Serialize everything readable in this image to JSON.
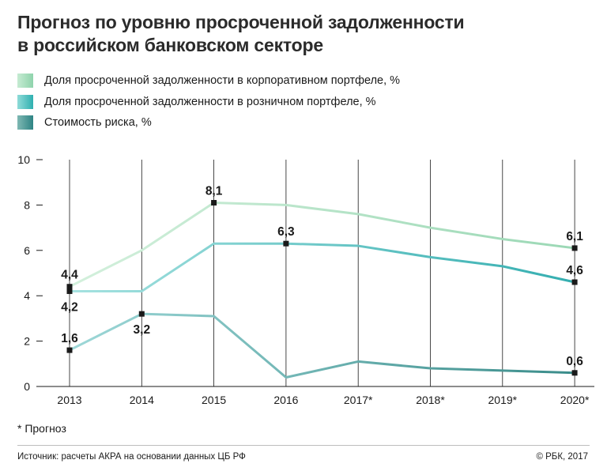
{
  "header": {
    "title_line1": "Прогноз по уровню просроченной задолженности",
    "title_line2": "в российском банковском секторе"
  },
  "legend": [
    {
      "label": "Доля просроченной задолженности в корпоративном портфеле, %",
      "color_from": "#c6ebd2",
      "color_to": "#8fd3ac"
    },
    {
      "label": "Доля просроченной задолженности в розничном портфеле, %",
      "color_from": "#8fdbd8",
      "color_to": "#2fb0b0"
    },
    {
      "label": "Стоимость риска, %",
      "color_from": "#7fb8b3",
      "color_to": "#2e8484"
    }
  ],
  "chart_data": {
    "type": "line",
    "x": [
      "2013",
      "2014",
      "2015",
      "2016",
      "2017*",
      "2018*",
      "2019*",
      "2020*"
    ],
    "ylim": [
      0,
      10
    ],
    "yticks": [
      "0",
      "2",
      "4",
      "6",
      "8",
      "10"
    ],
    "grid": "vertical",
    "series": [
      {
        "name": "Доля просроченной задолженности в корпоративном портфеле, %",
        "values": [
          4.4,
          6.0,
          8.1,
          8.0,
          7.6,
          7.0,
          6.5,
          6.1
        ],
        "color_from": "#d3f0dc",
        "color_to": "#9bd8b5"
      },
      {
        "name": "Доля просроченной задолженности в розничном портфеле, %",
        "values": [
          4.2,
          4.2,
          6.3,
          6.3,
          6.2,
          5.7,
          5.3,
          4.6
        ],
        "color_from": "#a6e2e0",
        "color_to": "#34aeb0"
      },
      {
        "name": "Стоимость риска, %",
        "values": [
          1.6,
          3.2,
          3.1,
          0.4,
          1.1,
          0.8,
          0.7,
          0.6
        ],
        "color_from": "#9ed8d8",
        "color_to": "#3a8c8a"
      }
    ],
    "markers": [
      {
        "series": 0,
        "index": 0,
        "label": "4,4",
        "pos": "above"
      },
      {
        "series": 1,
        "index": 0,
        "label": "4,2",
        "pos": "below"
      },
      {
        "series": 2,
        "index": 0,
        "label": "1,6",
        "pos": "above"
      },
      {
        "series": 2,
        "index": 1,
        "label": "3,2",
        "pos": "below"
      },
      {
        "series": 0,
        "index": 2,
        "label": "8,1",
        "pos": "above"
      },
      {
        "series": 1,
        "index": 3,
        "label": "6,3",
        "pos": "above"
      },
      {
        "series": 0,
        "index": 7,
        "label": "6,1",
        "pos": "above"
      },
      {
        "series": 1,
        "index": 7,
        "label": "4,6",
        "pos": "above"
      },
      {
        "series": 2,
        "index": 7,
        "label": "0,6",
        "pos": "above"
      }
    ]
  },
  "footnote": "* Прогноз",
  "source": "Источник:  расчеты АКРА на основании данных ЦБ РФ",
  "copyright": "© РБК, 2017"
}
